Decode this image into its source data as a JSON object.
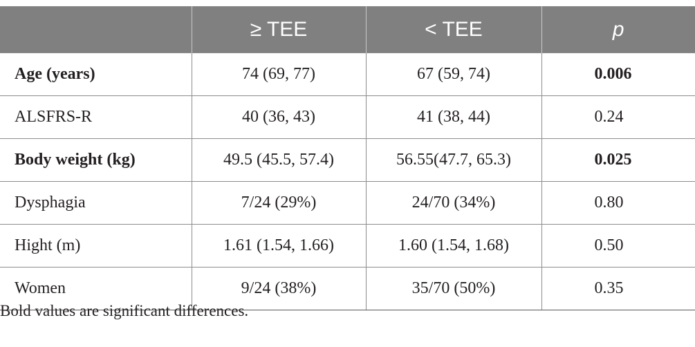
{
  "table": {
    "headers": [
      "",
      "≥ TEE",
      "< TEE",
      "p"
    ],
    "rows": [
      {
        "label": "Age (years)",
        "tee_high": "74 (69, 77)",
        "tee_low": "67 (59, 74)",
        "p": "0.006",
        "bold": true
      },
      {
        "label": "ALSFRS-R",
        "tee_high": "40 (36, 43)",
        "tee_low": "41 (38, 44)",
        "p": "0.24",
        "bold": false
      },
      {
        "label": "Body weight (kg)",
        "tee_high": "49.5 (45.5, 57.4)",
        "tee_low": "56.55(47.7, 65.3)",
        "p": "0.025",
        "bold": true
      },
      {
        "label": "Dysphagia",
        "tee_high": "7/24 (29%)",
        "tee_low": "24/70 (34%)",
        "p": "0.80",
        "bold": false
      },
      {
        "label": "Hight (m)",
        "tee_high": "1.61 (1.54, 1.66)",
        "tee_low": "1.60 (1.54, 1.68)",
        "p": "0.50",
        "bold": false
      },
      {
        "label": "Women",
        "tee_high": "9/24 (38%)",
        "tee_low": "35/70 (50%)",
        "p": "0.35",
        "bold": false
      }
    ]
  },
  "footnote": "Bold values are significant differences.",
  "colors": {
    "header_bg": "#808080",
    "header_text": "#ffffff",
    "body_text": "#231f20",
    "rule": "#8c8c8c"
  }
}
